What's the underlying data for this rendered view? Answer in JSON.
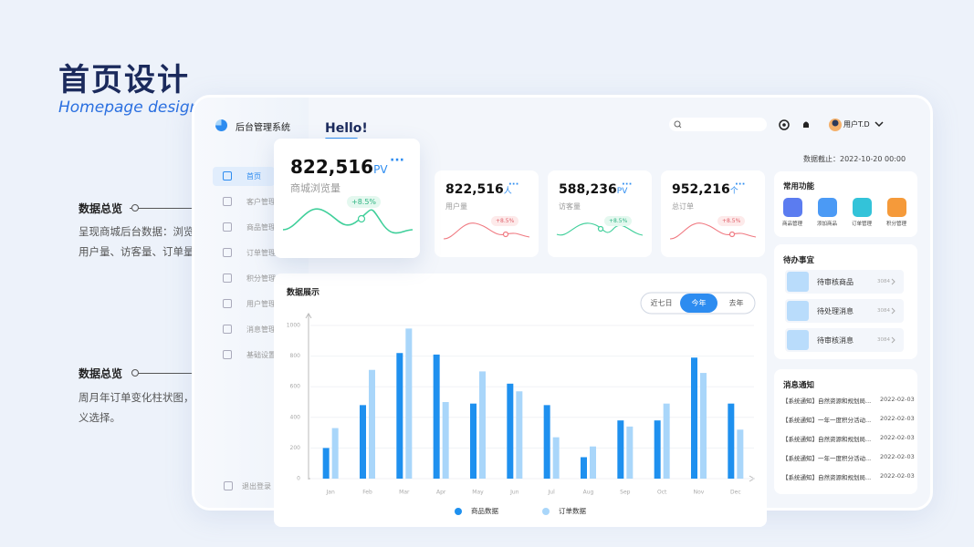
{
  "header": {
    "title": "首页设计",
    "subtitle": "Homepage design"
  },
  "annotations": [
    {
      "title": "数据总览",
      "text": "呈现商城后台数据：浏览量、用户量、访客量、订单量"
    },
    {
      "title": "数据总览",
      "text": "周月年订单变化柱状图，自定义选择。"
    }
  ],
  "sidebar": {
    "brand": "后台管理系统",
    "menu": [
      "首页",
      "客户管理",
      "商品管理",
      "订单管理",
      "积分管理",
      "用户管理",
      "消息管理",
      "基础设置"
    ],
    "logout": "退出登录"
  },
  "topbar": {
    "greeting": "Hello!",
    "user": "用户T.D",
    "data_date": "数据截止：2022-10-20 00:00"
  },
  "stats": [
    {
      "value": "822,516",
      "unit": "PV",
      "label": "商城浏览量",
      "change": "+8.5%"
    },
    {
      "value": "822,516",
      "unit": "人",
      "label": "用户量",
      "change": "+8.5%"
    },
    {
      "value": "588,236",
      "unit": "PV",
      "label": "访客量",
      "change": "+8.5%"
    },
    {
      "value": "952,216",
      "unit": "个",
      "label": "总订单",
      "change": "+8.5%"
    }
  ],
  "chart_data": {
    "type": "bar",
    "title": "数据展示",
    "tabs": [
      "近七日",
      "今年",
      "去年"
    ],
    "active_tab": 1,
    "categories": [
      "Jan",
      "Feb",
      "Mar",
      "Apr",
      "May",
      "Jun",
      "Jul",
      "Aug",
      "Sep",
      "Oct",
      "Nov",
      "Dec"
    ],
    "series": [
      {
        "name": "商品数据",
        "color": "#1e90ef",
        "values": [
          200,
          480,
          820,
          810,
          490,
          620,
          480,
          140,
          380,
          380,
          790,
          490
        ]
      },
      {
        "name": "订单数据",
        "color": "#a9d6fa",
        "values": [
          330,
          710,
          980,
          500,
          700,
          570,
          270,
          210,
          340,
          490,
          690,
          320
        ]
      }
    ],
    "ylim": [
      0,
      1000
    ],
    "yticks": [
      0,
      200,
      400,
      600,
      800,
      1000
    ],
    "grid": true
  },
  "quick_actions": {
    "title": "常用功能",
    "items": [
      "商品管理",
      "添加商品",
      "订单管理",
      "积分管理"
    ]
  },
  "todo": {
    "title": "待办事宜",
    "items": [
      {
        "label": "待审核商品",
        "count": "3084"
      },
      {
        "label": "待处理消息",
        "count": "3084"
      },
      {
        "label": "待审核消息",
        "count": "3084"
      }
    ]
  },
  "notices": {
    "title": "消息通知",
    "items": [
      {
        "text": "【系统通知】自然资源和规划局...",
        "date": "2022-02-03"
      },
      {
        "text": "【系统通知】一年一度积分活动...",
        "date": "2022-02-03"
      },
      {
        "text": "【系统通知】自然资源和规划局...",
        "date": "2022-02-03"
      },
      {
        "text": "【系统通知】一年一度积分活动...",
        "date": "2022-02-03"
      },
      {
        "text": "【系统通知】自然资源和规划局...",
        "date": "2022-02-03"
      }
    ]
  }
}
